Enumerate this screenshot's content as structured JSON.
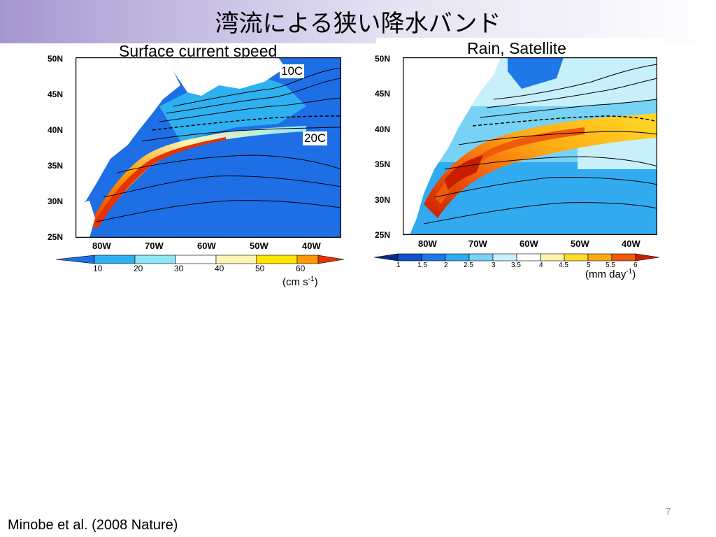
{
  "slide": {
    "title": "湾流による狭い降水バンド",
    "citation": "Minobe et al. (2008 Nature)",
    "page_number": "7"
  },
  "left_map": {
    "title": "Surface current speed",
    "lat_labels": [
      "50N",
      "45N",
      "40N",
      "35N",
      "30N",
      "25N"
    ],
    "lon_labels": [
      "80W",
      "70W",
      "60W",
      "50W",
      "40W"
    ],
    "isotherm_labels": [
      "10C",
      "20C"
    ],
    "colorbar_ticks": [
      "10",
      "20",
      "30",
      "40",
      "50",
      "60"
    ],
    "colorbar_colors": [
      "#1e6ee6",
      "#2fb0f0",
      "#8ee6f5",
      "#ffffff",
      "#fff5b4",
      "#ffe600",
      "#ff9a00",
      "#e63200"
    ],
    "units": "(cm s",
    "units_exp": "-1",
    "units_close": ")"
  },
  "right_map": {
    "title": "Rain, Satellite",
    "lat_labels": [
      "50N",
      "45N",
      "40N",
      "35N",
      "30N",
      "25N"
    ],
    "lon_labels": [
      "80W",
      "70W",
      "60W",
      "50W",
      "40W"
    ],
    "colorbar_ticks": [
      "1",
      "1.5",
      "2",
      "2.5",
      "3",
      "3.5",
      "4",
      "4.5",
      "5",
      "5.5",
      "6"
    ],
    "colorbar_colors": [
      "#0a2a8c",
      "#1450c8",
      "#1e78e6",
      "#32aaf0",
      "#78d2f5",
      "#c8f0fa",
      "#ffffff",
      "#fff5aa",
      "#ffdc28",
      "#ffaa14",
      "#f05a0a",
      "#c81e00"
    ],
    "units": "(mm day",
    "units_exp": "-1",
    "units_close": ")"
  },
  "colors": {
    "ocean_blue": "#1e6ee6",
    "land": "#ffffff",
    "title_gradient_start": "#a596cf"
  }
}
